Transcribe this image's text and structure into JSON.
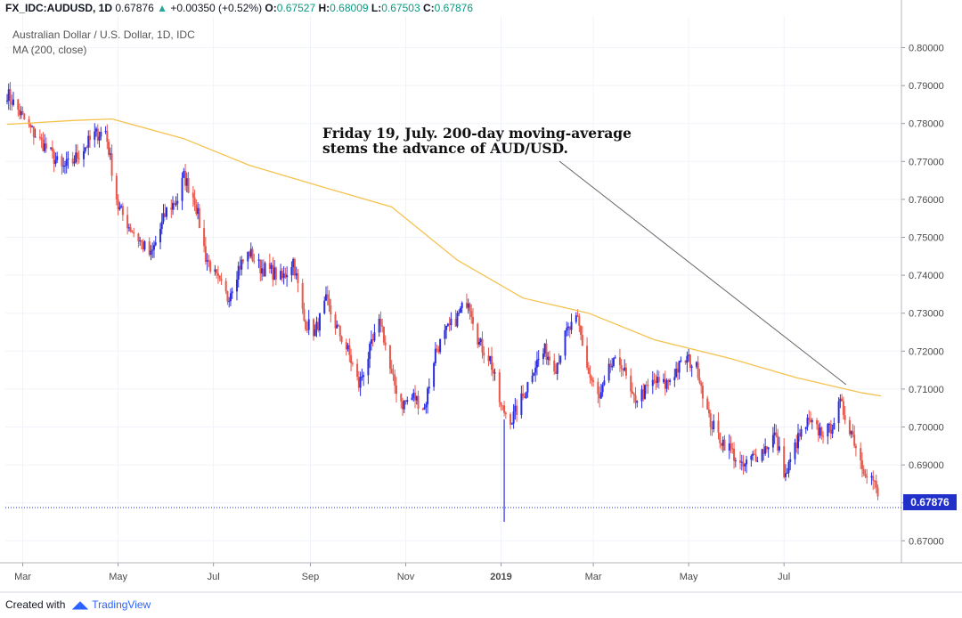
{
  "header": {
    "symbol": "FX_IDC:AUDUSD, 1D",
    "last": "0.67876",
    "arrow": "▲",
    "change": "+0.00350 (+0.52%)",
    "o_label": "O:",
    "o": "0.67527",
    "h_label": "H:",
    "h": "0.68009",
    "l_label": "L:",
    "l": "0.67503",
    "c_label": "C:",
    "c": "0.67876"
  },
  "legend": {
    "title": "Australian Dollar / U.S. Dollar, 1D, IDC",
    "ma": "MA (200, close)"
  },
  "annotation": {
    "line1": "Friday 19, July. 200-day moving-average",
    "line2": "stems the advance of AUD/USD."
  },
  "price_tag": "0.67876",
  "footer": {
    "created": "Created with",
    "brand": "TradingView"
  },
  "colors": {
    "up": "#2a2ee0",
    "down": "#e8574b",
    "ma": "#f5c24f",
    "price_line": "#2130c9",
    "grid": "#f0f3fa"
  },
  "chart_data": {
    "type": "candlestick",
    "x_ticks": [
      "Mar",
      "May",
      "Jul",
      "Sep",
      "Nov",
      "2019",
      "Mar",
      "May",
      "Jul"
    ],
    "y_ticks": [
      "0.80000",
      "0.79000",
      "0.78000",
      "0.77000",
      "0.76000",
      "0.75000",
      "0.74000",
      "0.73000",
      "0.72000",
      "0.71000",
      "0.70000",
      "0.69000",
      "0.68000",
      "0.67000"
    ],
    "ylim": [
      0.664,
      0.803
    ],
    "price_line": 0.67876,
    "close_path": [
      [
        "2018-02-19",
        0.788
      ],
      [
        "2018-03-05",
        0.779
      ],
      [
        "2018-03-19",
        0.772
      ],
      [
        "2018-03-26",
        0.768
      ],
      [
        "2018-04-02",
        0.77
      ],
      [
        "2018-04-16",
        0.777
      ],
      [
        "2018-04-23",
        0.778
      ],
      [
        "2018-05-01",
        0.758
      ],
      [
        "2018-05-08",
        0.753
      ],
      [
        "2018-05-15",
        0.749
      ],
      [
        "2018-05-22",
        0.745
      ],
      [
        "2018-06-01",
        0.757
      ],
      [
        "2018-06-08",
        0.76
      ],
      [
        "2018-06-12",
        0.766
      ],
      [
        "2018-06-19",
        0.76
      ],
      [
        "2018-06-26",
        0.745
      ],
      [
        "2018-07-03",
        0.739
      ],
      [
        "2018-07-10",
        0.734
      ],
      [
        "2018-07-17",
        0.742
      ],
      [
        "2018-07-24",
        0.746
      ],
      [
        "2018-07-31",
        0.742
      ],
      [
        "2018-08-07",
        0.741
      ],
      [
        "2018-08-14",
        0.739
      ],
      [
        "2018-08-21",
        0.744
      ],
      [
        "2018-08-28",
        0.728
      ],
      [
        "2018-09-04",
        0.725
      ],
      [
        "2018-09-11",
        0.733
      ],
      [
        "2018-09-18",
        0.726
      ],
      [
        "2018-09-25",
        0.72
      ],
      [
        "2018-10-02",
        0.711
      ],
      [
        "2018-10-09",
        0.72
      ],
      [
        "2018-10-16",
        0.728
      ],
      [
        "2018-10-23",
        0.713
      ],
      [
        "2018-10-30",
        0.706
      ],
      [
        "2018-11-06",
        0.708
      ],
      [
        "2018-11-13",
        0.705
      ],
      [
        "2018-11-20",
        0.72
      ],
      [
        "2018-11-27",
        0.725
      ],
      [
        "2018-12-04",
        0.729
      ],
      [
        "2018-12-11",
        0.734
      ],
      [
        "2018-12-18",
        0.722
      ],
      [
        "2018-12-25",
        0.718
      ],
      [
        "2019-01-01",
        0.705
      ],
      [
        "2019-01-08",
        0.702
      ],
      [
        "2019-01-15",
        0.708
      ],
      [
        "2019-01-22",
        0.716
      ],
      [
        "2019-01-29",
        0.72
      ],
      [
        "2019-02-05",
        0.716
      ],
      [
        "2019-02-12",
        0.725
      ],
      [
        "2019-02-19",
        0.728
      ],
      [
        "2019-02-26",
        0.714
      ],
      [
        "2019-03-05",
        0.707
      ],
      [
        "2019-03-12",
        0.716
      ],
      [
        "2019-03-19",
        0.717
      ],
      [
        "2019-03-26",
        0.707
      ],
      [
        "2019-04-02",
        0.709
      ],
      [
        "2019-04-09",
        0.712
      ],
      [
        "2019-04-16",
        0.711
      ],
      [
        "2019-04-23",
        0.715
      ],
      [
        "2019-04-30",
        0.718
      ],
      [
        "2019-05-07",
        0.715
      ],
      [
        "2019-05-14",
        0.702
      ],
      [
        "2019-05-21",
        0.697
      ],
      [
        "2019-05-28",
        0.694
      ],
      [
        "2019-06-04",
        0.689
      ],
      [
        "2019-06-11",
        0.692
      ],
      [
        "2019-06-18",
        0.694
      ],
      [
        "2019-06-25",
        0.698
      ],
      [
        "2019-07-02",
        0.687
      ],
      [
        "2019-07-09",
        0.696
      ],
      [
        "2019-07-16",
        0.701
      ],
      [
        "2019-07-23",
        0.699
      ],
      [
        "2019-07-30",
        0.699
      ],
      [
        "2019-08-06",
        0.706
      ],
      [
        "2019-08-13",
        0.699
      ],
      [
        "2019-08-20",
        0.69
      ],
      [
        "2019-08-27",
        0.686
      ],
      [
        "2019-09-01",
        0.6788
      ]
    ],
    "ma_200": [
      [
        "2018-02-19",
        0.7798
      ],
      [
        "2018-04-02",
        0.7808
      ],
      [
        "2018-04-27",
        0.7812
      ],
      [
        "2018-06-12",
        0.776
      ],
      [
        "2018-07-24",
        0.769
      ],
      [
        "2018-09-11",
        0.763
      ],
      [
        "2018-10-23",
        0.758
      ],
      [
        "2018-12-04",
        0.744
      ],
      [
        "2019-01-15",
        0.734
      ],
      [
        "2019-02-26",
        0.73
      ],
      [
        "2019-04-09",
        0.723
      ],
      [
        "2019-05-28",
        0.718
      ],
      [
        "2019-07-09",
        0.713
      ],
      [
        "2019-08-20",
        0.709
      ],
      [
        "2019-09-01",
        0.7082
      ]
    ]
  }
}
